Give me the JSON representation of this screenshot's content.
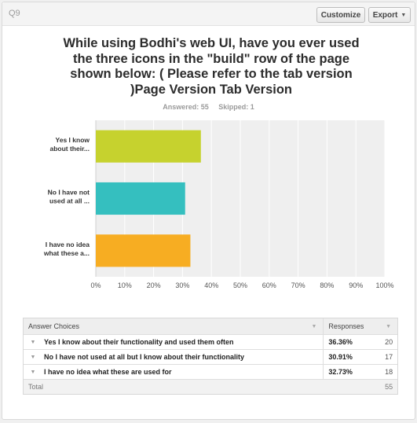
{
  "header": {
    "question_number": "Q9",
    "customize_label": "Customize",
    "export_label": "Export",
    "export_icon": "chevron-down-icon"
  },
  "question": {
    "title": "While using Bodhi's web UI, have you ever used the three icons in the \"build\" row of the page shown below: ( Please refer to the tab version )Page Version Tab Version",
    "answered_text": "Answered: 55",
    "skipped_text": "Skipped: 1"
  },
  "colors": {
    "bar1": "#c6d22e",
    "bar2": "#35bfbf",
    "bar3": "#f7ad22",
    "plot_bg": "#efefef",
    "grid": "#ffffff"
  },
  "chart_data": {
    "type": "bar",
    "orientation": "horizontal",
    "categories": [
      [
        "Yes I know",
        "about their..."
      ],
      [
        "No I have not",
        "used at all ..."
      ],
      [
        "I have no idea",
        "what these a..."
      ]
    ],
    "values": [
      36.36,
      30.91,
      32.73
    ],
    "xlim": [
      0,
      100
    ],
    "ticks": [
      "0%",
      "10%",
      "20%",
      "30%",
      "40%",
      "50%",
      "60%",
      "70%",
      "80%",
      "90%",
      "100%"
    ],
    "grid": true
  },
  "table": {
    "headers": {
      "choice": "Answer Choices",
      "responses": "Responses"
    },
    "rows": [
      {
        "choice": "Yes I know about their functionality and used them often",
        "percent": "36.36%",
        "count": "20"
      },
      {
        "choice": "No I have not used at all but I know about their functionality",
        "percent": "30.91%",
        "count": "17"
      },
      {
        "choice": "I have no idea what these are used for",
        "percent": "32.73%",
        "count": "18"
      }
    ],
    "total_label": "Total",
    "total_count": "55"
  }
}
